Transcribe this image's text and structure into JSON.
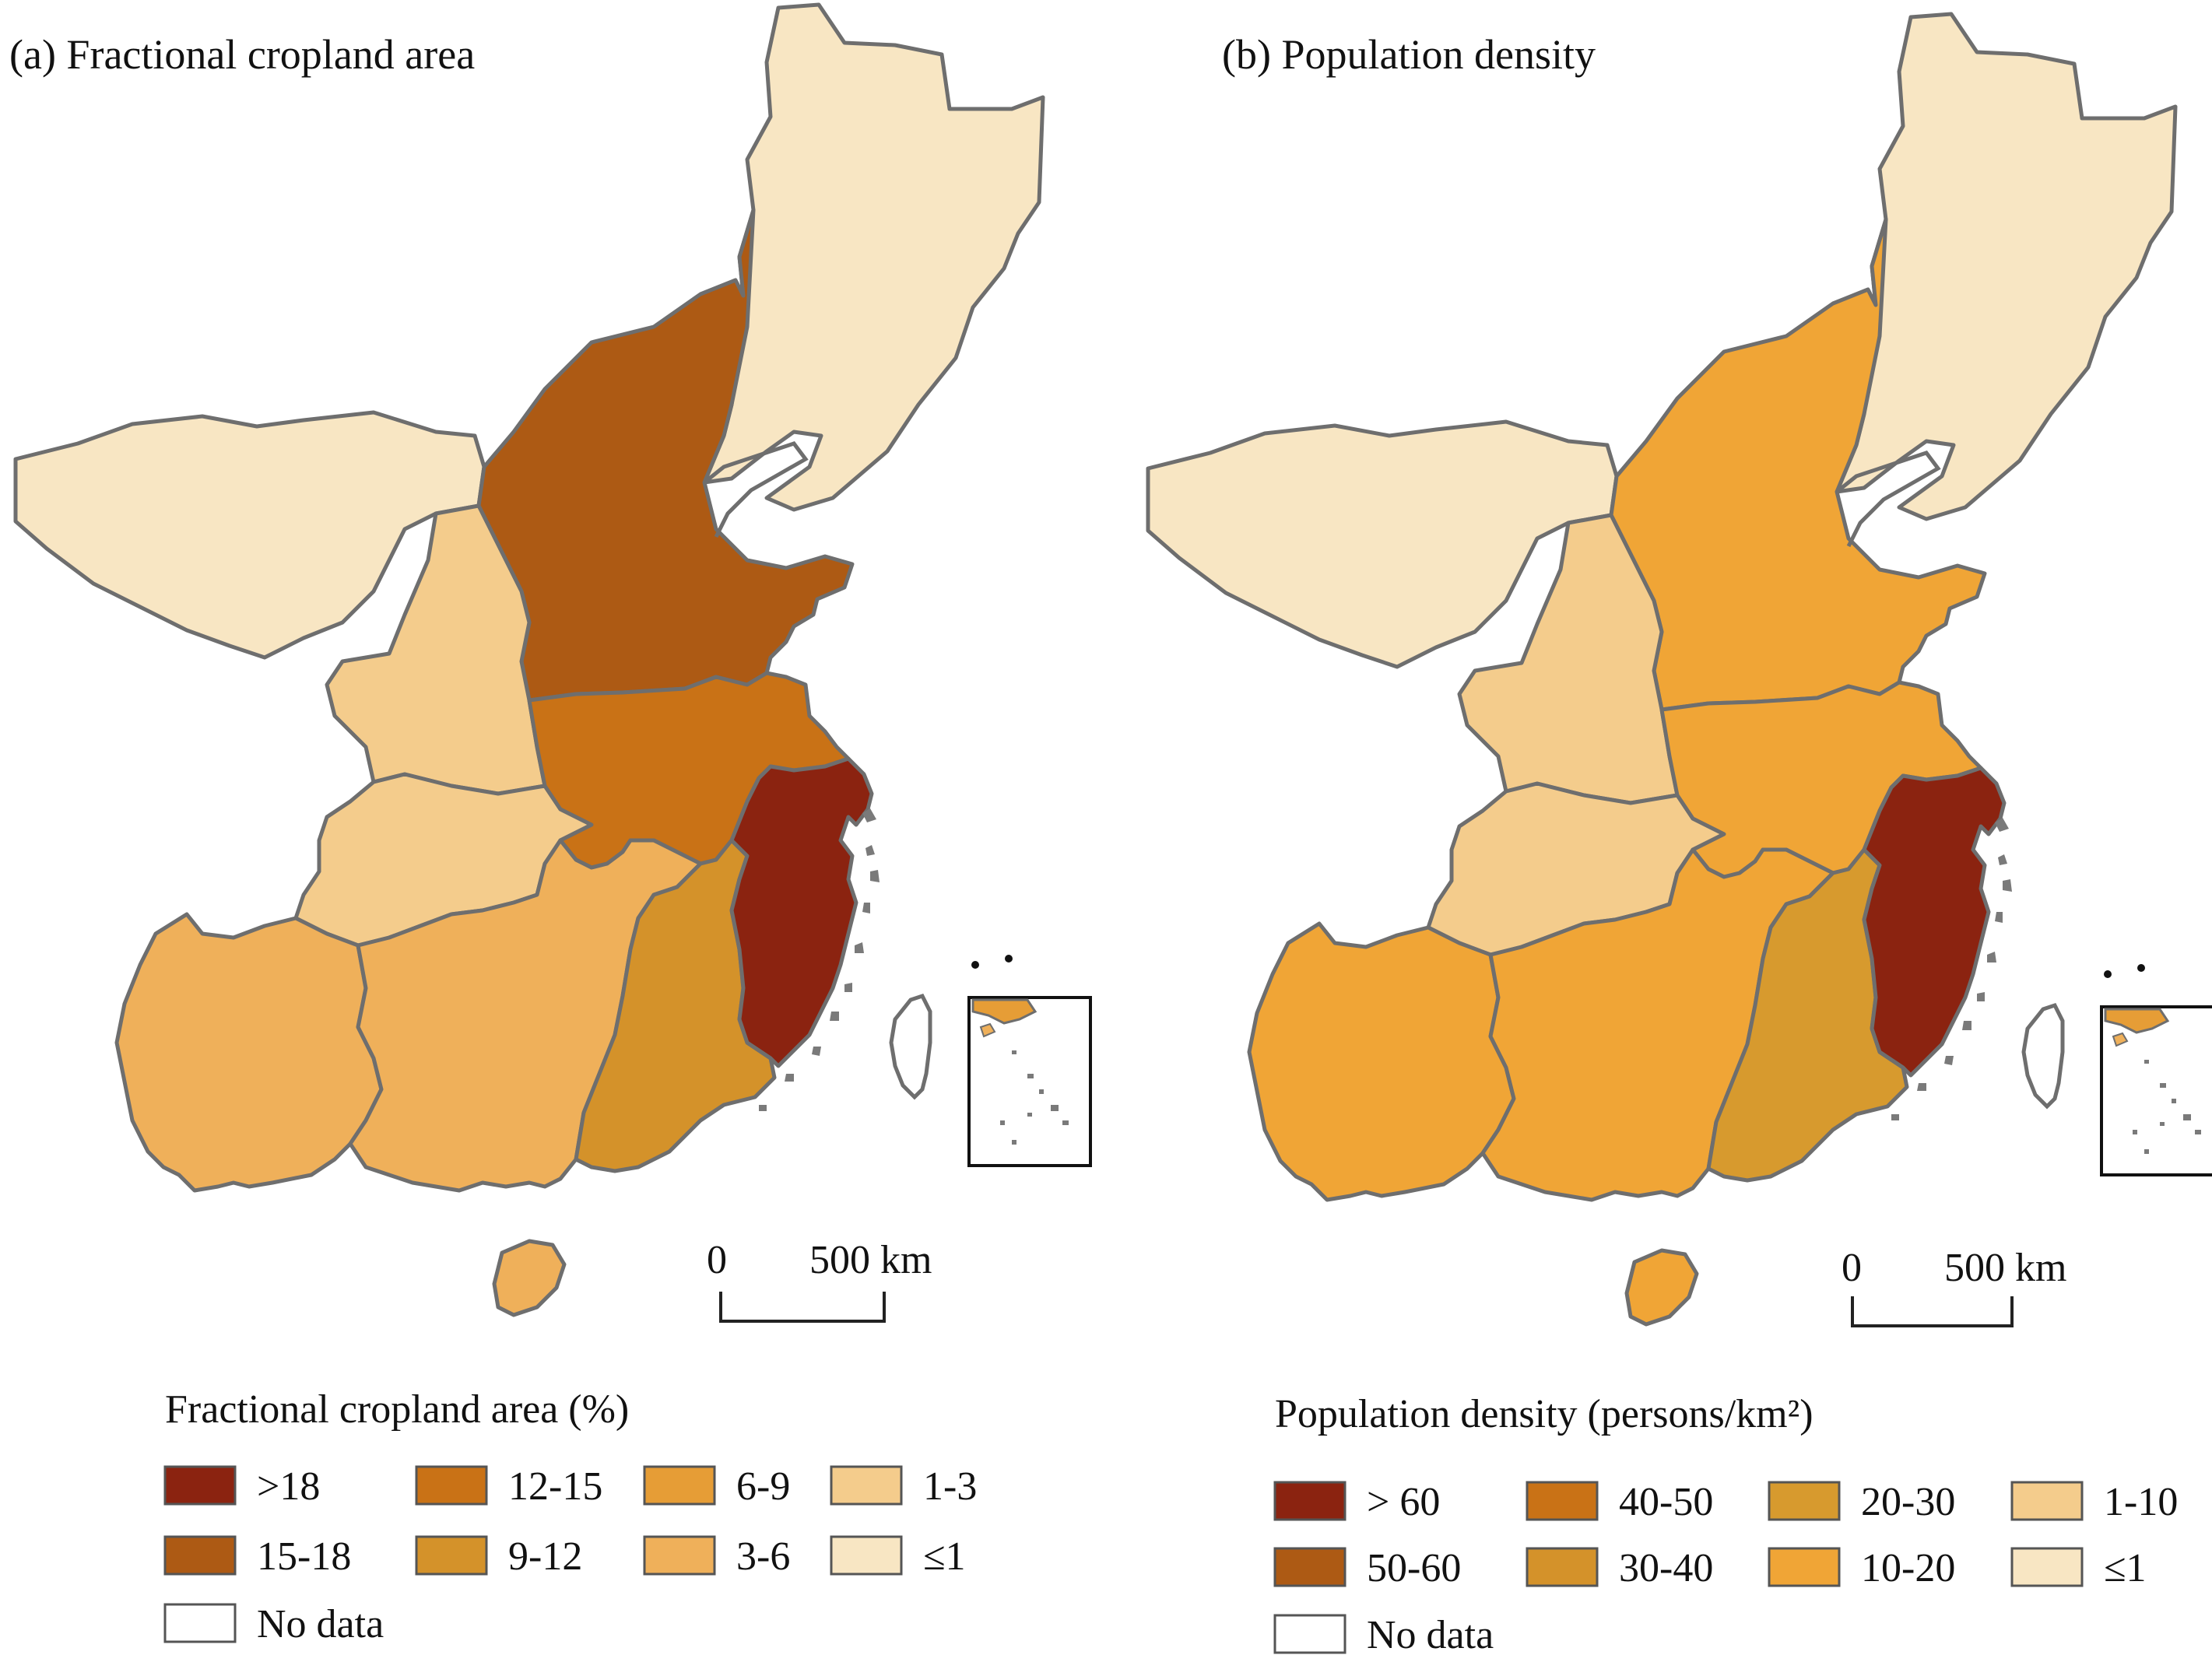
{
  "panels": [
    {
      "title": "(a) Fractional cropland area",
      "legend_title": "Fractional cropland area (%)",
      "legend": [
        {
          "label": ">18",
          "color": "#8b2310"
        },
        {
          "label": "15-18",
          "color": "#ad5a14"
        },
        {
          "label": "12-15",
          "color": "#c97216"
        },
        {
          "label": "9-12",
          "color": "#d4922a"
        },
        {
          "label": "6-9",
          "color": "#e69d36"
        },
        {
          "label": "3-6",
          "color": "#efb05a"
        },
        {
          "label": "1-3",
          "color": "#f4cc8c"
        },
        {
          "label": "≤1",
          "color": "#f8e6c3"
        },
        {
          "label": "No data",
          "color": "#ffffff"
        }
      ],
      "scale": {
        "zero": "0",
        "distance": "500 km"
      },
      "regions": [
        {
          "id": "northeast",
          "color": "#f8e6c3"
        },
        {
          "id": "north-west",
          "color": "#f8e6c3"
        },
        {
          "id": "north-china-plain",
          "color": "#ad5a14"
        },
        {
          "id": "loess-plateau",
          "color": "#f4cc8c"
        },
        {
          "id": "sichuan-north",
          "color": "#f4cc8c"
        },
        {
          "id": "huang-huai",
          "color": "#c97216"
        },
        {
          "id": "southwest",
          "color": "#efb05a"
        },
        {
          "id": "central-south",
          "color": "#efb05a"
        },
        {
          "id": "gan-min",
          "color": "#d4922a"
        },
        {
          "id": "jiangnan",
          "color": "#8b2310"
        },
        {
          "id": "hainan",
          "color": "#efb05a"
        }
      ]
    },
    {
      "title": "(b) Population density",
      "legend_title": "Population density (persons/km²)",
      "legend": [
        {
          "label": "> 60",
          "color": "#8b2310"
        },
        {
          "label": "50-60",
          "color": "#ad5a14"
        },
        {
          "label": "40-50",
          "color": "#c97216"
        },
        {
          "label": "30-40",
          "color": "#d4922a"
        },
        {
          "label": "20-30",
          "color": "#d79a2e"
        },
        {
          "label": "10-20",
          "color": "#f0a536"
        },
        {
          "label": "1-10",
          "color": "#f4cc8c"
        },
        {
          "label": "≤1",
          "color": "#f8e6c3"
        },
        {
          "label": "No data",
          "color": "#ffffff"
        }
      ],
      "scale": {
        "zero": "0",
        "distance": "500 km"
      },
      "regions": [
        {
          "id": "northeast",
          "color": "#f8e6c3"
        },
        {
          "id": "north-west",
          "color": "#f8e6c3"
        },
        {
          "id": "north-china-plain",
          "color": "#f0a536"
        },
        {
          "id": "loess-plateau",
          "color": "#f4cc8c"
        },
        {
          "id": "sichuan-north",
          "color": "#f4cc8c"
        },
        {
          "id": "huang-huai",
          "color": "#f0a536"
        },
        {
          "id": "southwest",
          "color": "#f0a536"
        },
        {
          "id": "central-south",
          "color": "#f0a536"
        },
        {
          "id": "gan-min",
          "color": "#d79a2e"
        },
        {
          "id": "jiangnan",
          "color": "#8b2310"
        },
        {
          "id": "hainan",
          "color": "#f0a536"
        }
      ]
    }
  ]
}
